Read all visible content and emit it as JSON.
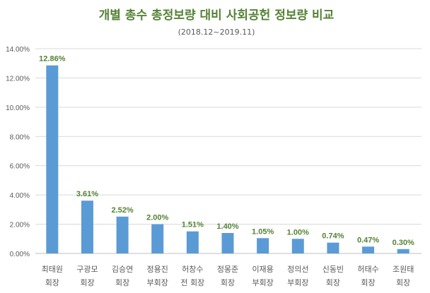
{
  "chart_data": {
    "type": "bar",
    "title": "개별 총수 총정보량 대비 사회공헌 정보량 비교",
    "subtitle": "(2018.12~2019.11)",
    "xlabel": "",
    "ylabel": "",
    "ylim": [
      0,
      14
    ],
    "yticks": [
      0,
      2,
      4,
      6,
      8,
      10,
      12,
      14
    ],
    "ytick_labels": [
      "0.00%",
      "2.00%",
      "4.00%",
      "6.00%",
      "8.00%",
      "10.00%",
      "12.00%",
      "14.00%"
    ],
    "grid": true,
    "categories": [
      [
        "최태원",
        "회장"
      ],
      [
        "구광모",
        "회장"
      ],
      [
        "김승연",
        "회장"
      ],
      [
        "정용진",
        "부회장"
      ],
      [
        "허창수",
        "전 회장"
      ],
      [
        "정몽준",
        "회장"
      ],
      [
        "이재용",
        "부회장"
      ],
      [
        "정의선",
        "부회장"
      ],
      [
        "신동빈",
        "회장"
      ],
      [
        "허태수",
        "회장"
      ],
      [
        "조원태",
        "회장"
      ]
    ],
    "values": [
      12.86,
      3.61,
      2.52,
      2.0,
      1.51,
      1.4,
      1.05,
      1.0,
      0.74,
      0.47,
      0.3
    ],
    "data_labels": [
      "12.86%",
      "3.61%",
      "2.52%",
      "2.00%",
      "1.51%",
      "1.40%",
      "1.05%",
      "1.00%",
      "0.74%",
      "0.47%",
      "0.30%"
    ],
    "colors": {
      "bar": "#5b9bd5",
      "label": "#548235",
      "title": "#548235",
      "grid": "#d9d9d9"
    }
  }
}
